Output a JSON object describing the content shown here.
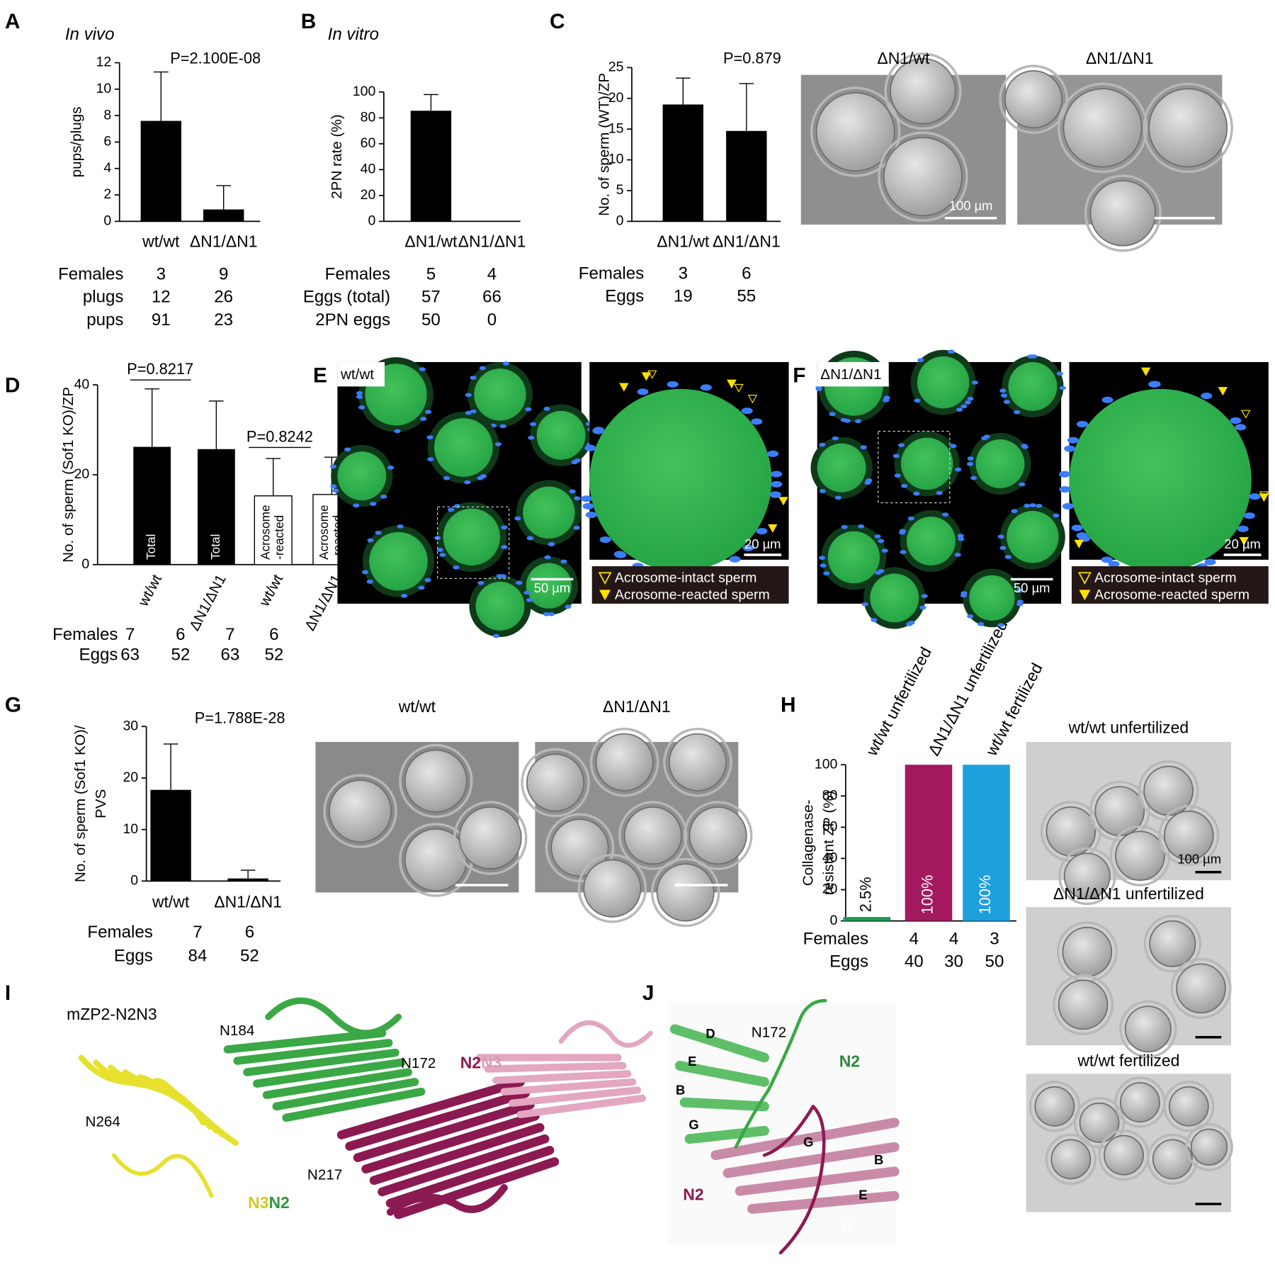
{
  "chart_data": [
    {
      "type": "bar",
      "panel": "A",
      "title": "In vivo",
      "ylabel": [
        "pups/plugs"
      ],
      "categories": [
        "wt/wt",
        "ΔN1/ΔN1"
      ],
      "values": [
        7.6,
        0.9
      ],
      "errors": [
        3.7,
        1.8
      ],
      "colors": [
        "#000000",
        "#000000"
      ],
      "ylim": [
        0,
        12
      ],
      "yticks": [
        0,
        2,
        4,
        6,
        8,
        10,
        12
      ],
      "annotations": [
        "P=2.100E-08"
      ],
      "table": [
        {
          "label": "Females",
          "values": [
            3,
            9
          ]
        },
        {
          "label": "plugs",
          "values": [
            12,
            26
          ]
        },
        {
          "label": "pups",
          "values": [
            91,
            23
          ]
        }
      ]
    },
    {
      "type": "bar",
      "panel": "B",
      "title": "In vitro",
      "ylabel": [
        "2PN rate (%)"
      ],
      "categories": [
        "ΔN1/wt",
        "ΔN1/ΔN1"
      ],
      "values": [
        85.5,
        0
      ],
      "errors": [
        12.5,
        null
      ],
      "colors": [
        "#000000",
        "#000000"
      ],
      "ylim": [
        0,
        100
      ],
      "yticks": [
        0,
        20,
        40,
        60,
        80,
        100
      ],
      "annotations": [],
      "table": [
        {
          "label": "Females",
          "values": [
            5,
            4
          ]
        },
        {
          "label": "Eggs (total)",
          "values": [
            57,
            66
          ]
        },
        {
          "label": "2PN eggs",
          "values": [
            50,
            0
          ]
        }
      ]
    },
    {
      "type": "bar",
      "panel": "C",
      "ylabel": [
        "No. of sperm (WT)/ZP"
      ],
      "categories": [
        "ΔN1/wt",
        "ΔN1/ΔN1"
      ],
      "values": [
        19,
        14.7
      ],
      "errors": [
        4.3,
        7.7
      ],
      "colors": [
        "#000000",
        "#000000"
      ],
      "ylim": [
        0,
        25
      ],
      "yticks": [
        0,
        5,
        10,
        15,
        20,
        25
      ],
      "annotations": [
        "P=0.879"
      ],
      "table": [
        {
          "label": "Females",
          "values": [
            3,
            6
          ]
        },
        {
          "label": "Eggs",
          "values": [
            19,
            55
          ]
        }
      ]
    },
    {
      "type": "bar",
      "panel": "D",
      "ylabel": [
        "No. of sperm (Sof1 KO)/ZP"
      ],
      "categories": [
        "wt/wt",
        "ΔN1/ΔN1",
        "wt/wt",
        "ΔN1/ΔN1"
      ],
      "values": [
        26.2,
        25.7,
        15.3,
        15.6
      ],
      "errors": [
        12.9,
        10.7,
        8.3,
        8.3
      ],
      "colors": [
        "#000000",
        "#000000",
        "#ffffff",
        "#ffffff"
      ],
      "bar_labels": [
        [
          "Total"
        ],
        [
          "Total"
        ],
        [
          "Acrosome",
          "-reacted"
        ],
        [
          "Acrosome",
          "-reacted"
        ]
      ],
      "ylim": [
        0,
        40
      ],
      "yticks": [
        0,
        20,
        40
      ],
      "annotations": [
        "P=0.8217",
        "P=0.8242"
      ],
      "table": [
        {
          "label": "Females",
          "values": [
            7,
            6,
            7,
            6
          ]
        },
        {
          "label": "Eggs",
          "values": [
            63,
            52,
            63,
            52
          ]
        }
      ]
    },
    {
      "type": "bar",
      "panel": "G",
      "ylabel": [
        "No. of sperm (Sof1 KO)/",
        "PVS"
      ],
      "categories": [
        "wt/wt",
        "ΔN1/ΔN1"
      ],
      "values": [
        17.7,
        0.5
      ],
      "errors": [
        8.9,
        1.6
      ],
      "colors": [
        "#000000",
        "#000000"
      ],
      "ylim": [
        0,
        30
      ],
      "yticks": [
        0,
        10,
        20,
        30
      ],
      "annotations": [
        "P=1.788E-28"
      ],
      "table": [
        {
          "label": "Females",
          "values": [
            7,
            6
          ]
        },
        {
          "label": "Eggs",
          "values": [
            84,
            52
          ]
        }
      ]
    },
    {
      "type": "bar",
      "panel": "H",
      "ylabel": [
        "Collagenase-",
        "resistant ZP (%)"
      ],
      "categories": [
        "wt/wt unfertilized",
        "ΔN1/ΔN1 unfertilized",
        "wt/wt fertilized"
      ],
      "values": [
        2.5,
        100,
        100
      ],
      "value_labels": [
        "2.5%",
        "100%",
        "100%"
      ],
      "colors": [
        "#1d9a4f",
        "#a3195f",
        "#1ea0dc"
      ],
      "ylim": [
        0,
        100
      ],
      "yticks": [
        0,
        20,
        40,
        60,
        80,
        100
      ],
      "annotations": [],
      "table": [
        {
          "label": "Females",
          "values": [
            4,
            4,
            3
          ]
        },
        {
          "label": "Eggs",
          "values": [
            40,
            30,
            50
          ]
        }
      ]
    }
  ],
  "micrographs": {
    "C": {
      "labels": [
        "ΔN1/wt",
        "ΔN1/ΔN1"
      ],
      "scale_bar": "100 µm"
    },
    "E": {
      "panel": "E",
      "label": "wt/wt",
      "scale_bars": [
        "50 µm",
        "20 µm"
      ],
      "legend": [
        "Acrosome-intact sperm",
        "Acrosome-reacted sperm"
      ]
    },
    "F": {
      "panel": "F",
      "label": "ΔN1/ΔN1",
      "scale_bars": [
        "50 µm",
        "20 µm"
      ],
      "legend": [
        "Acrosome-intact sperm",
        "Acrosome-reacted sperm"
      ]
    },
    "G": {
      "labels": [
        "wt/wt",
        "ΔN1/ΔN1"
      ]
    },
    "H": {
      "labels": [
        "wt/wt unfertilized",
        "ΔN1/ΔN1 unfertilized",
        "wt/wt fertilized"
      ],
      "scale_bar": "100 µm"
    }
  },
  "structures": {
    "I": {
      "panel": "I",
      "title": "mZP2-N2N3",
      "residues": [
        "N184",
        "N172",
        "N264",
        "N217"
      ],
      "domains": [
        [
          "N2",
          "N3"
        ],
        [
          "N3",
          "N2"
        ]
      ]
    },
    "J": {
      "panel": "J",
      "residue": "N172",
      "labels": [
        "D",
        "E",
        "B",
        "G",
        "N2",
        "G",
        "B",
        "E",
        "D",
        "N2"
      ]
    }
  }
}
